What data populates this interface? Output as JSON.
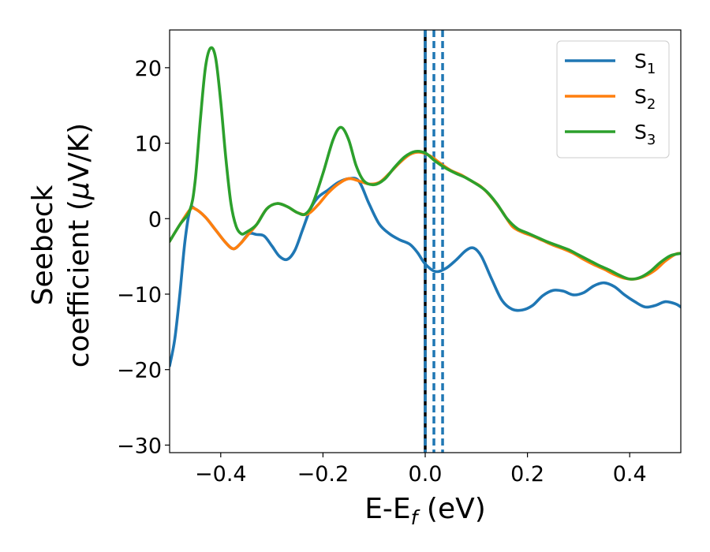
{
  "chart_data": {
    "type": "line",
    "title": "",
    "xlabel": "E-E",
    "xlabel_sub": "f",
    "xlabel_unit": " (eV)",
    "ylabel_line1": "Seebeck",
    "ylabel_line2": "coefficient  (",
    "ylabel_mu": "μ",
    "ylabel_unit": "V/K)",
    "xlim": [
      -0.5,
      0.5
    ],
    "ylim": [
      -31,
      25
    ],
    "xticks": [
      -0.4,
      -0.2,
      0.0,
      0.2,
      0.4
    ],
    "xtick_labels": [
      "−0.4",
      "−0.2",
      "0.0",
      "0.2",
      "0.4"
    ],
    "yticks": [
      -30,
      -20,
      -10,
      0,
      10,
      20
    ],
    "ytick_labels": [
      "−30",
      "−20",
      "−10",
      "0",
      "10",
      "20"
    ],
    "grid": false,
    "legend_position": "top-right",
    "vlines": [
      {
        "x": 0.0,
        "color": "#000000",
        "style": "solid"
      },
      {
        "x": 0.0,
        "color": "#1f77b4",
        "style": "dashed"
      },
      {
        "x": 0.017,
        "color": "#1f77b4",
        "style": "dashed"
      },
      {
        "x": 0.034,
        "color": "#1f77b4",
        "style": "dashed"
      }
    ],
    "series": [
      {
        "name": "S",
        "sub": "1",
        "color": "#1f77b4",
        "points": [
          [
            -0.5,
            -19.5
          ],
          [
            -0.49,
            -16
          ],
          [
            -0.48,
            -10
          ],
          [
            -0.47,
            -3
          ],
          [
            -0.46,
            1.2
          ],
          [
            -0.45,
            1.3
          ],
          [
            -0.43,
            0.2
          ],
          [
            -0.41,
            -1.5
          ],
          [
            -0.39,
            -3.2
          ],
          [
            -0.375,
            -4
          ],
          [
            -0.36,
            -3.2
          ],
          [
            -0.345,
            -2
          ],
          [
            -0.33,
            -2.1
          ],
          [
            -0.315,
            -2.3
          ],
          [
            -0.3,
            -3.6
          ],
          [
            -0.285,
            -5
          ],
          [
            -0.27,
            -5.4
          ],
          [
            -0.255,
            -4.2
          ],
          [
            -0.24,
            -1.5
          ],
          [
            -0.225,
            1.2
          ],
          [
            -0.21,
            2.8
          ],
          [
            -0.19,
            3.8
          ],
          [
            -0.17,
            4.8
          ],
          [
            -0.15,
            5.3
          ],
          [
            -0.13,
            5
          ],
          [
            -0.11,
            2
          ],
          [
            -0.09,
            -0.7
          ],
          [
            -0.07,
            -2
          ],
          [
            -0.05,
            -2.8
          ],
          [
            -0.03,
            -3.4
          ],
          [
            -0.015,
            -4.5
          ],
          [
            0.0,
            -6
          ],
          [
            0.02,
            -7
          ],
          [
            0.04,
            -6.6
          ],
          [
            0.06,
            -5.5
          ],
          [
            0.08,
            -4.2
          ],
          [
            0.095,
            -3.9
          ],
          [
            0.11,
            -5
          ],
          [
            0.13,
            -8
          ],
          [
            0.15,
            -10.8
          ],
          [
            0.17,
            -12
          ],
          [
            0.19,
            -12.1
          ],
          [
            0.21,
            -11.5
          ],
          [
            0.23,
            -10.2
          ],
          [
            0.25,
            -9.5
          ],
          [
            0.27,
            -9.6
          ],
          [
            0.29,
            -10.1
          ],
          [
            0.31,
            -9.8
          ],
          [
            0.33,
            -8.9
          ],
          [
            0.35,
            -8.5
          ],
          [
            0.37,
            -9
          ],
          [
            0.39,
            -10.1
          ],
          [
            0.41,
            -11
          ],
          [
            0.43,
            -11.7
          ],
          [
            0.45,
            -11.5
          ],
          [
            0.47,
            -11
          ],
          [
            0.49,
            -11.3
          ],
          [
            0.5,
            -11.7
          ]
        ]
      },
      {
        "name": "S",
        "sub": "2",
        "color": "#ff7f0e",
        "points": [
          [
            -0.5,
            -3
          ],
          [
            -0.48,
            -0.8
          ],
          [
            -0.46,
            1.2
          ],
          [
            -0.45,
            1.3
          ],
          [
            -0.43,
            0.2
          ],
          [
            -0.41,
            -1.5
          ],
          [
            -0.39,
            -3.2
          ],
          [
            -0.375,
            -4
          ],
          [
            -0.36,
            -3.2
          ],
          [
            -0.345,
            -2
          ],
          [
            -0.33,
            -0.8
          ],
          [
            -0.31,
            1.3
          ],
          [
            -0.29,
            2
          ],
          [
            -0.27,
            1.6
          ],
          [
            -0.25,
            0.8
          ],
          [
            -0.23,
            0.6
          ],
          [
            -0.21,
            1.8
          ],
          [
            -0.19,
            3.4
          ],
          [
            -0.17,
            4.6
          ],
          [
            -0.15,
            5.3
          ],
          [
            -0.13,
            5
          ],
          [
            -0.11,
            4.6
          ],
          [
            -0.09,
            4.8
          ],
          [
            -0.07,
            6
          ],
          [
            -0.05,
            7.4
          ],
          [
            -0.03,
            8.5
          ],
          [
            -0.01,
            8.8
          ],
          [
            0.01,
            8.3
          ],
          [
            0.03,
            7.3
          ],
          [
            0.05,
            6.4
          ],
          [
            0.07,
            5.8
          ],
          [
            0.09,
            5
          ],
          [
            0.11,
            4.2
          ],
          [
            0.13,
            2.8
          ],
          [
            0.15,
            1
          ],
          [
            0.17,
            -1
          ],
          [
            0.19,
            -1.8
          ],
          [
            0.21,
            -2.3
          ],
          [
            0.23,
            -2.9
          ],
          [
            0.25,
            -3.5
          ],
          [
            0.27,
            -4
          ],
          [
            0.29,
            -4.6
          ],
          [
            0.31,
            -5.4
          ],
          [
            0.33,
            -6.1
          ],
          [
            0.35,
            -6.7
          ],
          [
            0.37,
            -7.4
          ],
          [
            0.39,
            -7.9
          ],
          [
            0.41,
            -8
          ],
          [
            0.43,
            -7.6
          ],
          [
            0.45,
            -6.8
          ],
          [
            0.47,
            -5.6
          ],
          [
            0.49,
            -4.7
          ],
          [
            0.5,
            -4.6
          ]
        ]
      },
      {
        "name": "S",
        "sub": "3",
        "color": "#2ca02c",
        "points": [
          [
            -0.5,
            -3
          ],
          [
            -0.48,
            -0.8
          ],
          [
            -0.46,
            1.2
          ],
          [
            -0.45,
            5
          ],
          [
            -0.44,
            13
          ],
          [
            -0.43,
            20
          ],
          [
            -0.42,
            22.6
          ],
          [
            -0.41,
            21.3
          ],
          [
            -0.4,
            15.5
          ],
          [
            -0.39,
            8
          ],
          [
            -0.38,
            2
          ],
          [
            -0.37,
            -1
          ],
          [
            -0.36,
            -2
          ],
          [
            -0.35,
            -1.8
          ],
          [
            -0.33,
            -0.8
          ],
          [
            -0.31,
            1.3
          ],
          [
            -0.29,
            2
          ],
          [
            -0.27,
            1.6
          ],
          [
            -0.25,
            0.8
          ],
          [
            -0.235,
            0.6
          ],
          [
            -0.22,
            2
          ],
          [
            -0.2,
            6
          ],
          [
            -0.18,
            10.5
          ],
          [
            -0.165,
            12.1
          ],
          [
            -0.15,
            10.5
          ],
          [
            -0.135,
            7
          ],
          [
            -0.12,
            5
          ],
          [
            -0.1,
            4.5
          ],
          [
            -0.08,
            5.2
          ],
          [
            -0.06,
            6.8
          ],
          [
            -0.04,
            8.2
          ],
          [
            -0.02,
            8.9
          ],
          [
            0.0,
            8.7
          ],
          [
            0.02,
            7.6
          ],
          [
            0.04,
            6.7
          ],
          [
            0.06,
            6
          ],
          [
            0.08,
            5.4
          ],
          [
            0.1,
            4.6
          ],
          [
            0.12,
            3.6
          ],
          [
            0.14,
            2
          ],
          [
            0.16,
            0
          ],
          [
            0.18,
            -1.3
          ],
          [
            0.2,
            -1.9
          ],
          [
            0.22,
            -2.5
          ],
          [
            0.24,
            -3.1
          ],
          [
            0.26,
            -3.6
          ],
          [
            0.28,
            -4.1
          ],
          [
            0.3,
            -4.8
          ],
          [
            0.32,
            -5.5
          ],
          [
            0.34,
            -6.2
          ],
          [
            0.36,
            -6.8
          ],
          [
            0.38,
            -7.5
          ],
          [
            0.4,
            -8
          ],
          [
            0.42,
            -7.8
          ],
          [
            0.44,
            -7
          ],
          [
            0.46,
            -5.8
          ],
          [
            0.48,
            -4.9
          ],
          [
            0.5,
            -4.6
          ]
        ]
      }
    ]
  }
}
